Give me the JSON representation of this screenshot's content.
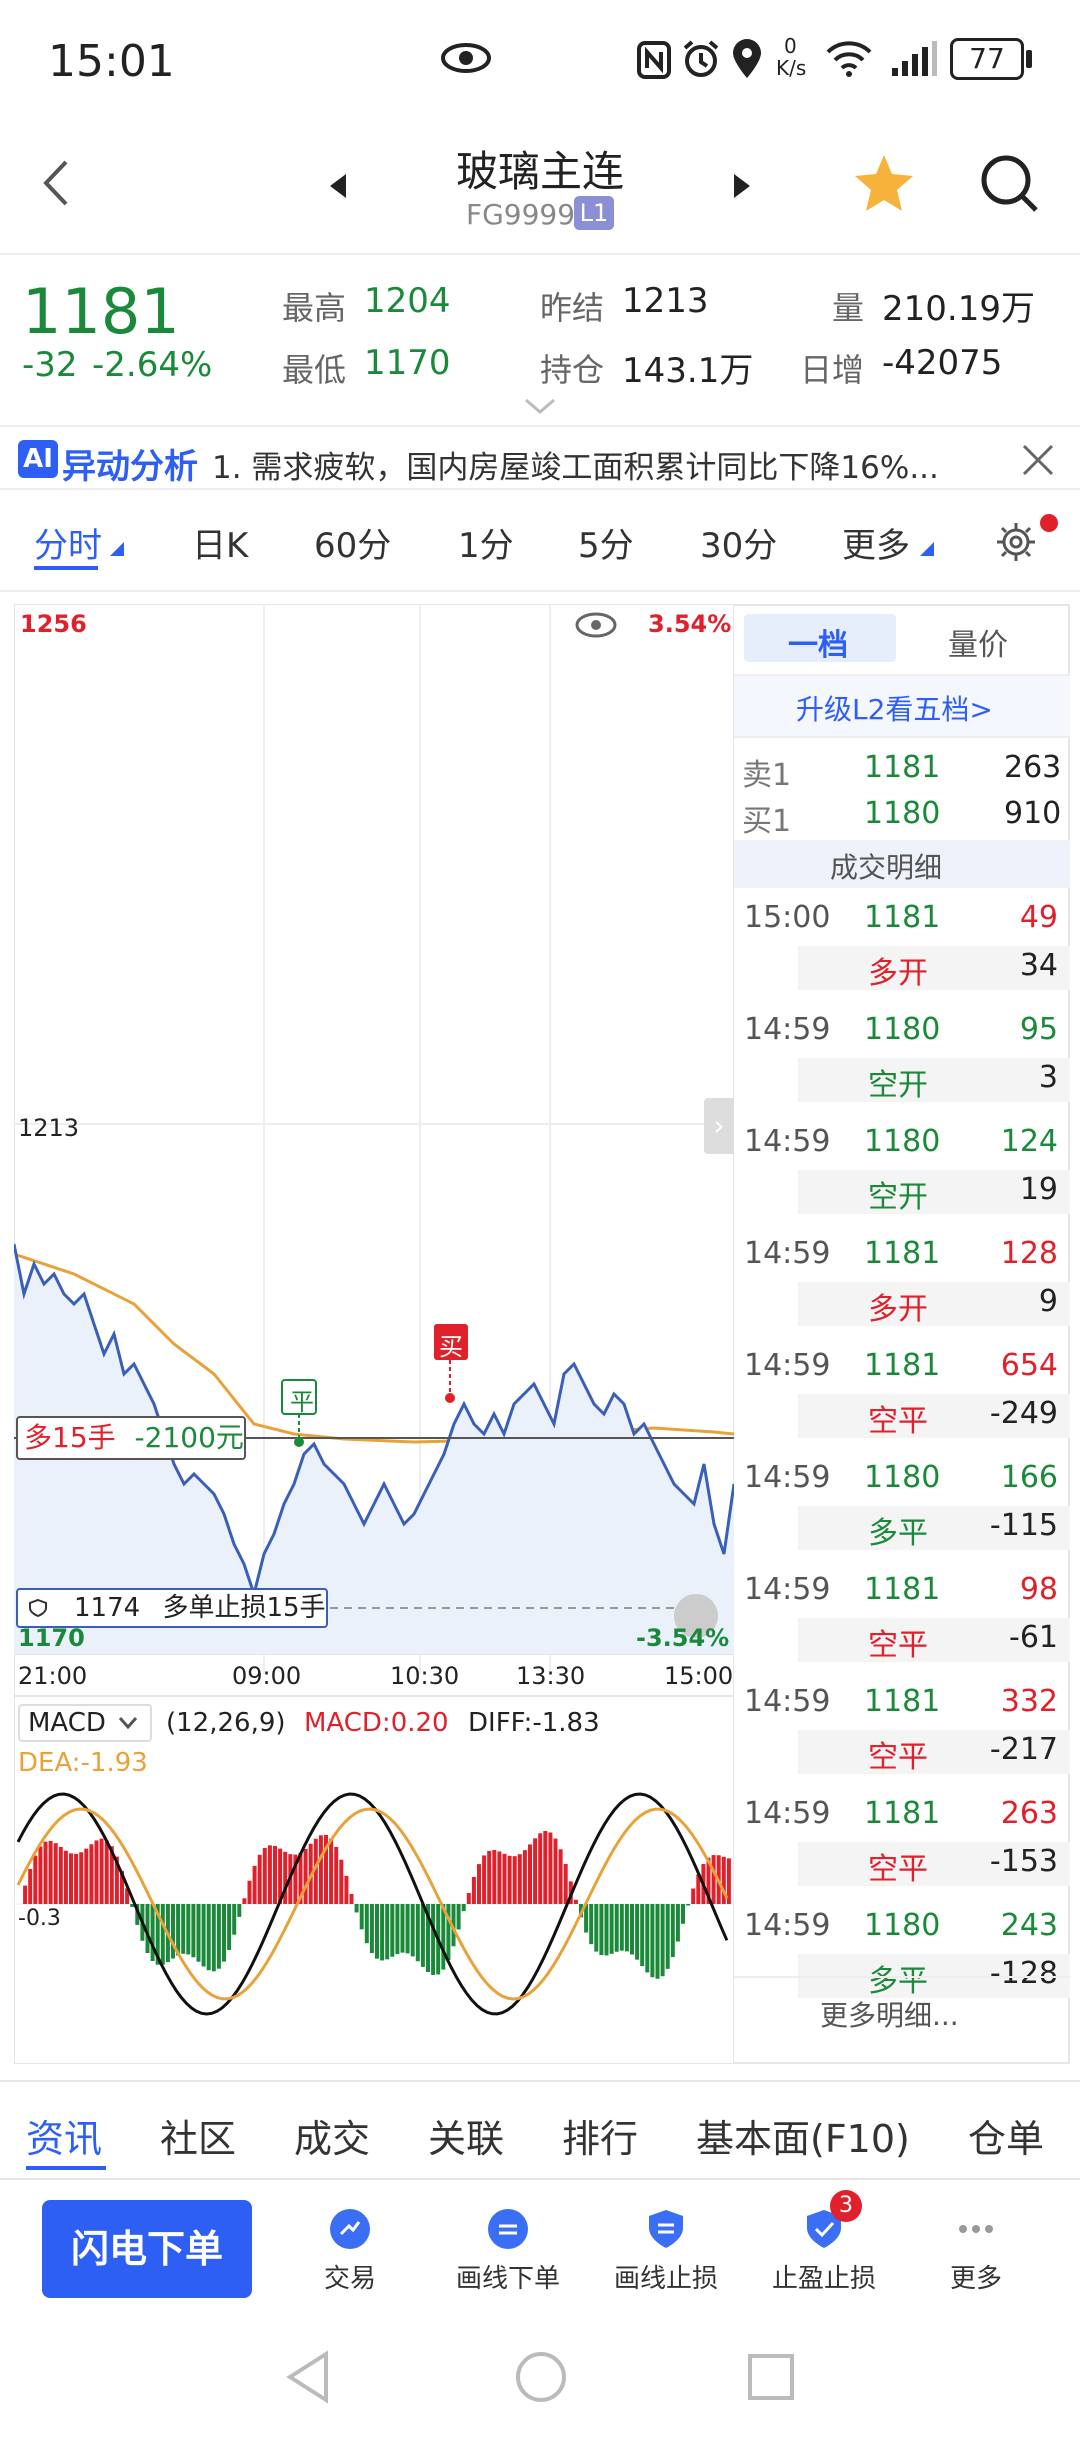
{
  "status": {
    "time": "15:01",
    "net_speed_top": "0",
    "net_speed_unit": "K/s",
    "battery": "77"
  },
  "header": {
    "title": "玻璃主连",
    "code": "FG9999",
    "level": "L1"
  },
  "quote": {
    "price": "1181",
    "change": "-32",
    "change_pct": "-2.64%",
    "high_label": "最高",
    "high": "1204",
    "low_label": "最低",
    "low": "1170",
    "prev_label": "昨结",
    "prev": "1213",
    "oi_label": "持仓",
    "oi": "143.1万",
    "vol_label": "量",
    "vol": "210.19万",
    "daily_inc_label": "日增",
    "daily_inc": "-42075"
  },
  "ai": {
    "badge": "AI",
    "title": "异动分析",
    "text": "1. 需求疲软，国内房屋竣工面积累计同比下降16%..."
  },
  "tabs": [
    "分时",
    "日K",
    "60分",
    "1分",
    "5分",
    "30分",
    "更多"
  ],
  "chart": {
    "y_top": "1256",
    "y_top_pct": "3.54%",
    "y_mid": "1213",
    "y_bottom": "1170",
    "y_bottom_pct": "-3.54%",
    "x_labels": [
      "21:00",
      "09:00",
      "10:30",
      "13:30",
      "15:00"
    ],
    "position_label": "多15手",
    "position_pnl": "-2100元",
    "stop_price": "1174",
    "stop_label": "多单止损15手",
    "marker_ping": "平",
    "marker_buy": "买",
    "macd_selector": "MACD",
    "macd_params": "(12,26,9)",
    "macd_value": "MACD:0.20",
    "diff_value": "DIFF:-1.83",
    "dea_value": "DEA:-1.93",
    "macd_axis": "-0.3"
  },
  "chart_data": {
    "type": "line",
    "x": [
      "21:00",
      "09:00",
      "10:30",
      "13:30",
      "15:00"
    ],
    "ylim": [
      1170,
      1256
    ],
    "reference": 1213,
    "series": []
  },
  "panel": {
    "tab_level1": "一档",
    "tab_price_vol": "量价",
    "upgrade": "升级L2看五档>",
    "ask_label": "卖1",
    "ask_price": "1181",
    "ask_vol": "263",
    "bid_label": "买1",
    "bid_price": "1180",
    "bid_vol": "910",
    "detail_header": "成交明细",
    "trades": [
      {
        "time": "15:00",
        "price": "1181",
        "vol": "49",
        "type": "多开",
        "oi": "34",
        "vc": "red",
        "tc": "red"
      },
      {
        "time": "14:59",
        "price": "1180",
        "vol": "95",
        "type": "空开",
        "oi": "3",
        "vc": "green",
        "tc": "green"
      },
      {
        "time": "14:59",
        "price": "1180",
        "vol": "124",
        "type": "空开",
        "oi": "19",
        "vc": "green",
        "tc": "green"
      },
      {
        "time": "14:59",
        "price": "1181",
        "vol": "128",
        "type": "多开",
        "oi": "9",
        "vc": "red",
        "tc": "red"
      },
      {
        "time": "14:59",
        "price": "1181",
        "vol": "654",
        "type": "空平",
        "oi": "-249",
        "vc": "red",
        "tc": "red"
      },
      {
        "time": "14:59",
        "price": "1180",
        "vol": "166",
        "type": "多平",
        "oi": "-115",
        "vc": "green",
        "tc": "green"
      },
      {
        "time": "14:59",
        "price": "1181",
        "vol": "98",
        "type": "空平",
        "oi": "-61",
        "vc": "red",
        "tc": "red"
      },
      {
        "time": "14:59",
        "price": "1181",
        "vol": "332",
        "type": "空平",
        "oi": "-217",
        "vc": "red",
        "tc": "red"
      },
      {
        "time": "14:59",
        "price": "1181",
        "vol": "263",
        "type": "空平",
        "oi": "-153",
        "vc": "red",
        "tc": "red"
      },
      {
        "time": "14:59",
        "price": "1180",
        "vol": "243",
        "type": "多平",
        "oi": "-128",
        "vc": "green",
        "tc": "green"
      }
    ],
    "more": "更多明细..."
  },
  "bottom_tabs": [
    "资讯",
    "社区",
    "成交",
    "关联",
    "排行",
    "基本面(F10)",
    "仓单"
  ],
  "actions": {
    "flash": "闪电下单",
    "draw_order": "画线下单",
    "draw_stop": "画线止损",
    "tp_sl": "止盈止损",
    "tp_sl_badge": "3",
    "trade": "交易",
    "more": "更多"
  },
  "colors": {
    "accent": "#2d5ff5",
    "up": "#e0202a",
    "down": "#1a8a3a",
    "price_line": "#3a5fb8",
    "avg_line": "#e8a23a"
  }
}
